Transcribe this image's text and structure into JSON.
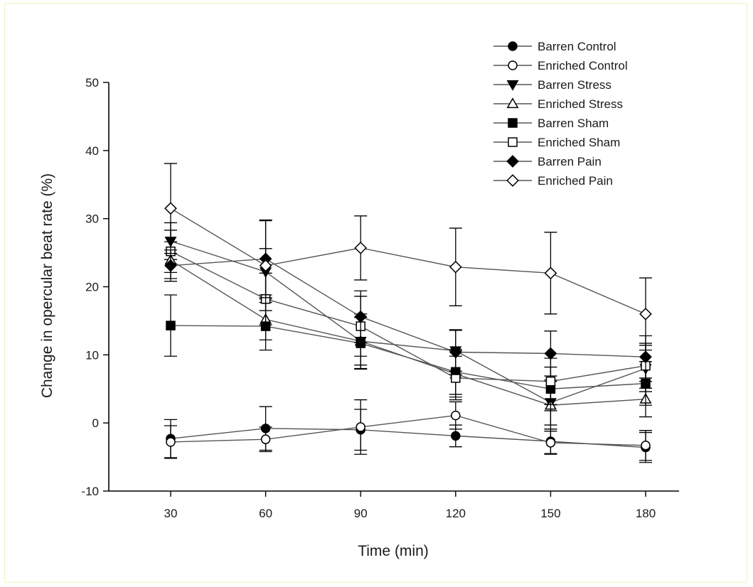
{
  "chart_data": {
    "type": "line",
    "title": "",
    "xlabel": "Time (min)",
    "ylabel": "Change in opercular beat rate (%)",
    "x": [
      30,
      60,
      90,
      120,
      150,
      180
    ],
    "xticks": [
      "30",
      "60",
      "90",
      "120",
      "150",
      "180"
    ],
    "ylim": [
      -10,
      50
    ],
    "yticks": [
      "-10",
      "0",
      "10",
      "20",
      "30",
      "40",
      "50"
    ],
    "grid": false,
    "legend_position": "top-right",
    "series": [
      {
        "name": "Barren Control",
        "marker": "circle",
        "filled": true,
        "color": "#000000",
        "values": [
          -2.3,
          -0.8,
          -1.0,
          -1.9,
          -2.7,
          -3.6
        ],
        "errors": [
          2.8,
          3.2,
          3.0,
          1.6,
          1.8,
          2.2
        ]
      },
      {
        "name": "Enriched Control",
        "marker": "circle",
        "filled": false,
        "color": "#000000",
        "values": [
          -2.8,
          -2.4,
          -0.6,
          1.1,
          -2.9,
          -3.3
        ],
        "errors": [
          2.4,
          1.8,
          4.0,
          2.0,
          1.7,
          2.2
        ]
      },
      {
        "name": "Barren Stress",
        "marker": "triangle-down",
        "filled": true,
        "color": "#000000",
        "values": [
          26.7,
          22.2,
          12.0,
          10.6,
          3.0,
          8.0
        ],
        "errors": [
          2.7,
          3.4,
          4.0,
          3.0,
          3.3,
          3.4
        ]
      },
      {
        "name": "Enriched Stress",
        "marker": "triangle-up",
        "filled": false,
        "color": "#000000",
        "values": [
          23.9,
          15.2,
          12.0,
          7.2,
          2.6,
          3.5
        ],
        "errors": [
          2.7,
          3.0,
          3.5,
          3.4,
          3.5,
          2.6
        ]
      },
      {
        "name": "Barren Sham",
        "marker": "square",
        "filled": true,
        "color": "#000000",
        "values": [
          14.3,
          14.2,
          11.7,
          7.5,
          5.0,
          5.8
        ],
        "errors": [
          4.5,
          3.5,
          3.8,
          3.3,
          3.2,
          3.2
        ]
      },
      {
        "name": "Enriched Sham",
        "marker": "square",
        "filled": false,
        "color": "#000000",
        "values": [
          25.2,
          18.2,
          14.2,
          6.6,
          6.1,
          8.4
        ],
        "errors": [
          3.1,
          3.8,
          4.4,
          3.2,
          3.4,
          3.3
        ]
      },
      {
        "name": "Barren Pain",
        "marker": "diamond",
        "filled": true,
        "color": "#000000",
        "values": [
          23.1,
          24.1,
          15.6,
          10.4,
          10.2,
          9.7
        ],
        "errors": [
          2.3,
          5.7,
          3.8,
          3.3,
          3.3,
          3.1
        ]
      },
      {
        "name": "Enriched Pain",
        "marker": "diamond",
        "filled": false,
        "color": "#000000",
        "values": [
          31.5,
          23.1,
          25.7,
          22.9,
          22.0,
          16.0
        ],
        "errors": [
          6.6,
          6.6,
          4.7,
          5.7,
          6.0,
          5.3
        ]
      }
    ]
  }
}
